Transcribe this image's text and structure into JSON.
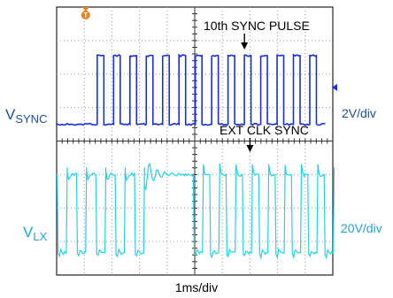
{
  "chart_data": {
    "type": "line",
    "title": "",
    "xlabel": "1ms/div",
    "divisions": {
      "horizontal": 10,
      "vertical": 8
    },
    "trigger_marker": "T",
    "colors": {
      "sync": "#1a2fd6",
      "lx": "#22d3e6",
      "label_blue": "#1f4e9a",
      "label_cyan": "#1aa6d8",
      "marker": "#e8821e",
      "grid": "#9a9a9a"
    },
    "series": [
      {
        "name": "V",
        "subscript": "SYNC",
        "scale": "2V/div",
        "low_level_div": 0.5,
        "high_level_div": 2.55,
        "pulse_start_div": 1.47,
        "pulse_count": 14,
        "pulse_period_div": 0.592,
        "pulse_width_div": 0.24
      },
      {
        "name": "V",
        "subscript": "LX",
        "scale": "20V/div",
        "low_level_div": -3.33,
        "high_level_div": -1.0,
        "cycles_before_sync": 5,
        "period_before_div": 0.7,
        "cycles_after_sync": 9,
        "period_after_div": 0.592,
        "low_time_div": 0.33,
        "sync_start_div": 4.95
      }
    ],
    "annotations": [
      {
        "text": "10th SYNC PULSE",
        "target_div": 6.8,
        "arrow": "down"
      },
      {
        "text": "EXT CLK SYNC",
        "target_div": 7.0,
        "arrow": "down"
      }
    ]
  }
}
